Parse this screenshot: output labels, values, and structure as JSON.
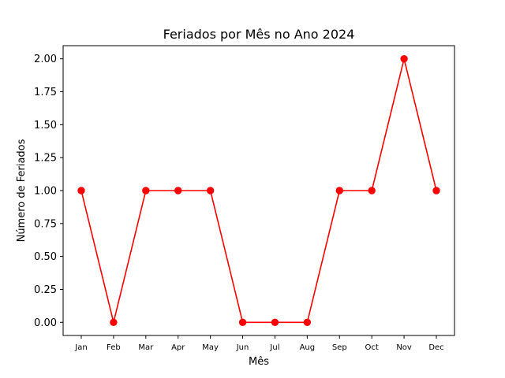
{
  "chart_data": {
    "type": "line",
    "title": "Feriados por Mês no Ano 2024",
    "xlabel": "Mês",
    "ylabel": "Número de Feriados",
    "categories": [
      "Jan",
      "Feb",
      "Mar",
      "Apr",
      "May",
      "Jun",
      "Jul",
      "Aug",
      "Sep",
      "Oct",
      "Nov",
      "Dec"
    ],
    "series": [
      {
        "values": [
          1,
          0,
          1,
          1,
          1,
          0,
          0,
          0,
          1,
          1,
          2,
          1
        ],
        "color": "#ff0000",
        "marker": "circle"
      }
    ],
    "ylim": [
      -0.1,
      2.1
    ],
    "yticks": [
      0.0,
      0.25,
      0.5,
      0.75,
      1.0,
      1.25,
      1.5,
      1.75,
      2.0
    ],
    "ytick_labels": [
      "0.00",
      "0.25",
      "0.50",
      "0.75",
      "1.00",
      "1.25",
      "1.50",
      "1.75",
      "2.00"
    ],
    "grid": false,
    "legend": false
  }
}
